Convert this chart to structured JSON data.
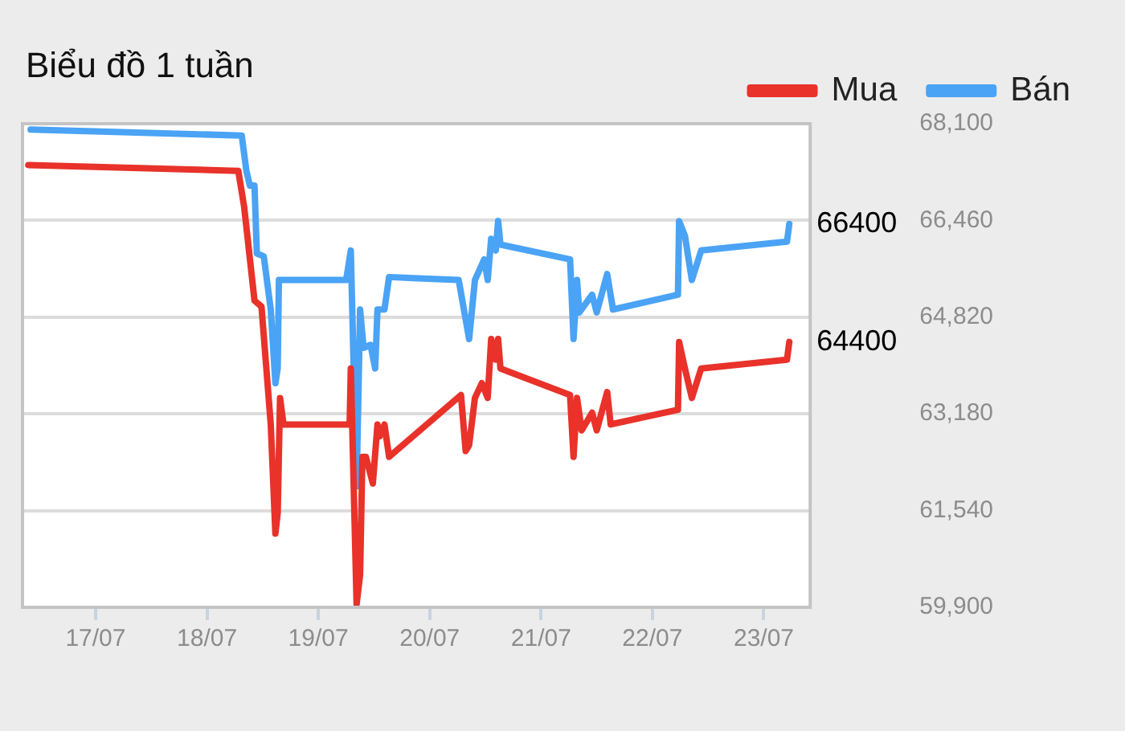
{
  "chart_data": {
    "type": "line",
    "title": "Biểu đồ 1 tuần",
    "legend": "top right",
    "grid": "y",
    "marker": "none",
    "line_style": "solid",
    "xlim": [
      "--07-16T08:15",
      "--07-23T10:00"
    ],
    "xticks": [
      {
        "value": "--07-17",
        "label": "17/07"
      },
      {
        "value": "--07-18",
        "label": "18/07"
      },
      {
        "value": "--07-19",
        "label": "19/07"
      },
      {
        "value": "--07-20",
        "label": "20/07"
      },
      {
        "value": "--07-21",
        "label": "21/07"
      },
      {
        "value": "--07-22",
        "label": "22/07"
      },
      {
        "value": "--07-23",
        "label": "23/07"
      }
    ],
    "ylim": [
      59900,
      68100
    ],
    "yticks": [
      {
        "value": 59900,
        "label": "59,900"
      },
      {
        "value": 61540,
        "label": "61,540"
      },
      {
        "value": 63180,
        "label": "63,180"
      },
      {
        "value": 64820,
        "label": "64,820"
      },
      {
        "value": 66460,
        "label": "66,460"
      },
      {
        "value": 68100,
        "label": "68,100"
      }
    ],
    "series": [
      {
        "name": "Mua",
        "color": "#e8322a",
        "x": [
          "--07-16T09:30",
          "--07-18T06:45",
          "--07-18T08:00",
          "--07-18T10:15",
          "--07-18T11:45",
          "--07-18T13:45",
          "--07-18T14:45",
          "--07-18T15:15",
          "--07-18T15:45",
          "--07-18T16:30",
          "--07-19T06:45",
          "--07-19T07:00",
          "--07-19T08:15",
          "--07-19T09:00",
          "--07-19T09:30",
          "--07-19T10:15",
          "--07-19T11:45",
          "--07-19T12:45",
          "--07-19T13:15",
          "--07-19T14:15",
          "--07-19T15:15",
          "--07-20T06:45",
          "--07-20T07:45",
          "--07-20T08:30",
          "--07-20T09:45",
          "--07-20T11:15",
          "--07-20T12:30",
          "--07-20T13:15",
          "--07-20T14:15",
          "--07-20T14:45",
          "--07-20T15:15",
          "--07-21T06:15",
          "--07-21T07:00",
          "--07-21T07:45",
          "--07-21T08:45",
          "--07-21T11:00",
          "--07-21T12:00",
          "--07-21T14:15",
          "--07-21T15:00",
          "--07-22T05:30",
          "--07-22T05:45",
          "--07-22T07:00",
          "--07-22T08:30",
          "--07-22T10:30",
          "--07-23T05:00",
          "--07-23T05:30"
        ],
        "values": [
          67400,
          67300,
          66700,
          65100,
          65000,
          63000,
          61150,
          61500,
          63450,
          63000,
          63000,
          63950,
          59950,
          60450,
          62450,
          62450,
          62000,
          63000,
          62800,
          63000,
          62450,
          63500,
          62550,
          62650,
          63450,
          63700,
          63450,
          64450,
          64100,
          64450,
          63950,
          63500,
          62450,
          63450,
          62900,
          63200,
          62900,
          63550,
          63000,
          63250,
          64400,
          63950,
          63450,
          63950,
          64100,
          64400
        ]
      },
      {
        "name": "Bán",
        "color": "#4aa3f5",
        "x": [
          "--07-16T10:00",
          "--07-18T07:30",
          "--07-18T08:30",
          "--07-18T09:15",
          "--07-18T10:15",
          "--07-18T10:45",
          "--07-18T12:15",
          "--07-18T13:45",
          "--07-18T14:45",
          "--07-18T15:15",
          "--07-18T15:30",
          "--07-19T06:00",
          "--07-19T07:00",
          "--07-19T08:15",
          "--07-19T09:00",
          "--07-19T09:45",
          "--07-19T11:15",
          "--07-19T12:15",
          "--07-19T12:45",
          "--07-19T14:15",
          "--07-19T15:15",
          "--07-20T06:15",
          "--07-20T08:30",
          "--07-20T09:45",
          "--07-20T11:45",
          "--07-20T12:30",
          "--07-20T13:15",
          "--07-20T14:15",
          "--07-20T14:45",
          "--07-20T15:15",
          "--07-21T06:15",
          "--07-21T07:00",
          "--07-21T07:45",
          "--07-21T08:15",
          "--07-21T11:00",
          "--07-21T12:00",
          "--07-21T14:15",
          "--07-21T15:30",
          "--07-22T05:30",
          "--07-22T05:45",
          "--07-22T07:00",
          "--07-22T08:30",
          "--07-22T10:30",
          "--07-23T05:00",
          "--07-23T05:30"
        ],
        "values": [
          68000,
          67900,
          67300,
          67050,
          67050,
          65900,
          65850,
          64950,
          63700,
          63950,
          65450,
          65450,
          65950,
          61950,
          64950,
          64300,
          64350,
          63950,
          64950,
          64950,
          65500,
          65450,
          64450,
          65450,
          65800,
          65450,
          66150,
          65950,
          66450,
          66050,
          65800,
          64450,
          65450,
          64900,
          65200,
          64900,
          65550,
          64950,
          65200,
          66450,
          66200,
          65450,
          65950,
          66100,
          66400
        ]
      }
    ],
    "annotations": [
      {
        "text": "66400",
        "x": "--07-23T05:30",
        "y": 66400
      },
      {
        "text": "64400",
        "x": "--07-23T05:30",
        "y": 64400
      }
    ]
  }
}
